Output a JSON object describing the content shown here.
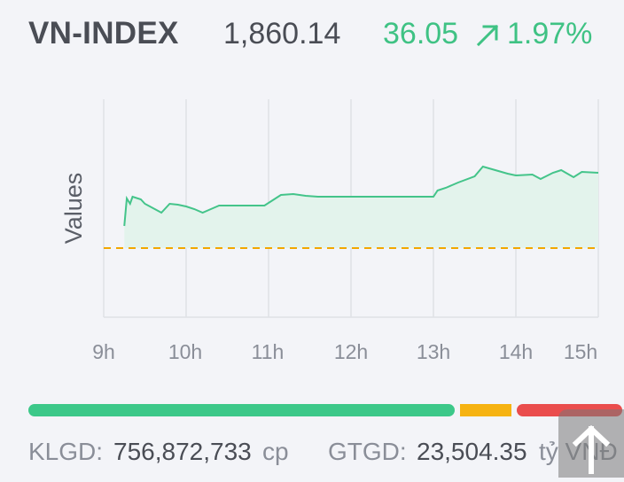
{
  "header": {
    "index_name": "VN-INDEX",
    "index_value": "1,860.14",
    "change": "36.05",
    "change_pct": "1.97%",
    "arrow_icon": "arrow-up-right-icon"
  },
  "chart_data": {
    "type": "area",
    "ylabel": "Values",
    "x_tick_labels": [
      "9h",
      "10h",
      "11h",
      "12h",
      "13h",
      "14h",
      "15h"
    ],
    "reference_line": "dashed",
    "colors": {
      "line": "#44c48a",
      "fill": "#e3f3ec",
      "reference": "#f2a700",
      "grid": "#dfe1e6"
    },
    "series": [
      {
        "values_relative_to_reference": [
          [
            9.25,
            0.25
          ],
          [
            9.28,
            0.56
          ],
          [
            9.32,
            0.5
          ],
          [
            9.35,
            0.58
          ],
          [
            9.45,
            0.55
          ],
          [
            9.5,
            0.5
          ],
          [
            9.6,
            0.45
          ],
          [
            9.7,
            0.4
          ],
          [
            9.8,
            0.5
          ],
          [
            9.9,
            0.49
          ],
          [
            10.0,
            0.47
          ],
          [
            10.1,
            0.44
          ],
          [
            10.2,
            0.4
          ],
          [
            10.3,
            0.44
          ],
          [
            10.4,
            0.48
          ],
          [
            10.5,
            0.48
          ],
          [
            10.75,
            0.48
          ],
          [
            10.95,
            0.48
          ],
          [
            11.05,
            0.54
          ],
          [
            11.15,
            0.6
          ],
          [
            11.3,
            0.61
          ],
          [
            11.45,
            0.59
          ],
          [
            11.6,
            0.58
          ],
          [
            12.5,
            0.58
          ],
          [
            13.0,
            0.58
          ],
          [
            13.05,
            0.65
          ],
          [
            13.15,
            0.68
          ],
          [
            13.3,
            0.74
          ],
          [
            13.5,
            0.81
          ],
          [
            13.6,
            0.92
          ],
          [
            13.75,
            0.88
          ],
          [
            13.9,
            0.84
          ],
          [
            14.0,
            0.82
          ],
          [
            14.2,
            0.83
          ],
          [
            14.3,
            0.78
          ],
          [
            14.45,
            0.85
          ],
          [
            14.55,
            0.88
          ],
          [
            14.7,
            0.8
          ],
          [
            14.8,
            0.86
          ],
          [
            15.0,
            0.85
          ]
        ]
      }
    ]
  },
  "breadth": {
    "up_fraction": 0.722,
    "flat_fraction": 0.096,
    "down_fraction": 0.182
  },
  "footer": {
    "klgd_label": "KLGD:",
    "klgd_value": "756,872,733",
    "klgd_unit": "cp",
    "gtgd_label": "GTGD:",
    "gtgd_value": "23,504.35",
    "gtgd_unit": "tỷ VNĐ"
  },
  "scroll_top_icon": "arrow-up-icon"
}
